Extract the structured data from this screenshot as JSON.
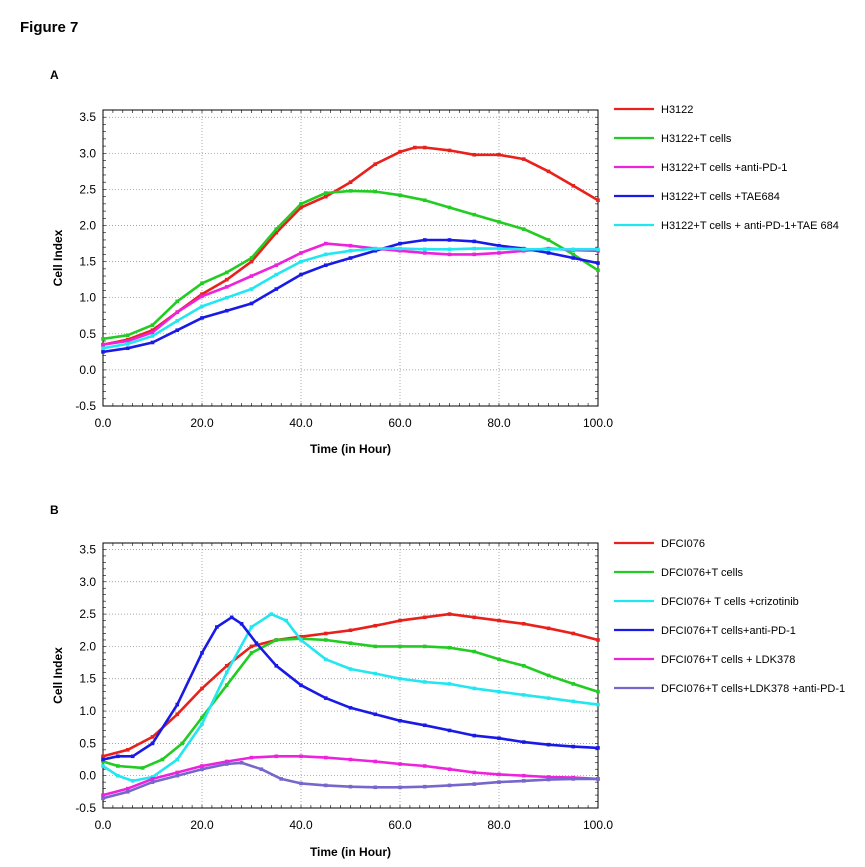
{
  "figure_title": "Figure 7",
  "panels": {
    "a_label": "A",
    "b_label": "B"
  },
  "chart_data": [
    {
      "type": "line",
      "panel": "A",
      "xlabel": "Time (in Hour)",
      "ylabel": "Cell Index",
      "xlim": [
        0,
        100
      ],
      "ylim": [
        -0.5,
        3.6
      ],
      "xticks": [
        0,
        20,
        40,
        60,
        80,
        100
      ],
      "xtick_labels": [
        "0.0",
        "20.0",
        "40.0",
        "60.0",
        "80.0",
        "100.0"
      ],
      "yticks": [
        -0.5,
        0,
        0.5,
        1,
        1.5,
        2,
        2.5,
        3,
        3.5
      ],
      "ytick_labels": [
        "-0.5",
        "0.0",
        "0.5",
        "1.0",
        "1.5",
        "2.0",
        "2.5",
        "3.0",
        "3.5"
      ],
      "grid": true,
      "legend_position": "right",
      "series": [
        {
          "name": "H3122",
          "color": "#e8211c",
          "x": [
            0,
            5,
            10,
            15,
            20,
            25,
            30,
            35,
            40,
            45,
            50,
            55,
            60,
            63,
            65,
            70,
            75,
            80,
            85,
            90,
            95,
            100
          ],
          "y": [
            0.35,
            0.42,
            0.55,
            0.8,
            1.05,
            1.25,
            1.5,
            1.9,
            2.25,
            2.4,
            2.6,
            2.85,
            3.02,
            3.08,
            3.08,
            3.04,
            2.98,
            2.98,
            2.92,
            2.75,
            2.55,
            2.35
          ]
        },
        {
          "name": "H3122+T cells",
          "color": "#22cc22",
          "x": [
            0,
            5,
            10,
            15,
            20,
            25,
            30,
            35,
            40,
            45,
            50,
            55,
            60,
            65,
            70,
            75,
            80,
            85,
            90,
            95,
            100
          ],
          "y": [
            0.43,
            0.48,
            0.62,
            0.95,
            1.2,
            1.35,
            1.55,
            1.95,
            2.3,
            2.45,
            2.48,
            2.47,
            2.42,
            2.35,
            2.25,
            2.15,
            2.05,
            1.95,
            1.8,
            1.6,
            1.38
          ]
        },
        {
          "name": "H3122+T cells +anti-PD-1",
          "color": "#ee22dd",
          "x": [
            0,
            5,
            10,
            15,
            20,
            25,
            30,
            35,
            40,
            45,
            50,
            55,
            60,
            65,
            70,
            75,
            80,
            85,
            90,
            95,
            100
          ],
          "y": [
            0.35,
            0.4,
            0.52,
            0.8,
            1.02,
            1.15,
            1.3,
            1.45,
            1.62,
            1.75,
            1.72,
            1.68,
            1.65,
            1.62,
            1.6,
            1.6,
            1.62,
            1.65,
            1.68,
            1.66,
            1.65
          ]
        },
        {
          "name": "H3122+T cells +TAE684",
          "color": "#1a1ae6",
          "x": [
            0,
            5,
            10,
            15,
            20,
            25,
            30,
            35,
            40,
            45,
            50,
            55,
            60,
            65,
            70,
            75,
            80,
            85,
            90,
            95,
            100
          ],
          "y": [
            0.25,
            0.3,
            0.38,
            0.55,
            0.72,
            0.82,
            0.92,
            1.12,
            1.32,
            1.45,
            1.55,
            1.65,
            1.75,
            1.8,
            1.8,
            1.78,
            1.72,
            1.68,
            1.62,
            1.55,
            1.48
          ]
        },
        {
          "name": "H3122+T cells + anti-PD-1+TAE 684",
          "color": "#22e6f0",
          "x": [
            0,
            5,
            10,
            15,
            20,
            25,
            30,
            35,
            40,
            45,
            50,
            55,
            60,
            65,
            70,
            75,
            80,
            85,
            90,
            95,
            100
          ],
          "y": [
            0.3,
            0.36,
            0.47,
            0.68,
            0.88,
            1.0,
            1.12,
            1.32,
            1.5,
            1.6,
            1.65,
            1.68,
            1.68,
            1.67,
            1.67,
            1.68,
            1.68,
            1.67,
            1.67,
            1.67,
            1.67
          ]
        }
      ]
    },
    {
      "type": "line",
      "panel": "B",
      "xlabel": "Time (in Hour)",
      "ylabel": "Cell Index",
      "xlim": [
        0,
        100
      ],
      "ylim": [
        -0.5,
        3.6
      ],
      "xticks": [
        0,
        20,
        40,
        60,
        80,
        100
      ],
      "xtick_labels": [
        "0.0",
        "20.0",
        "40.0",
        "60.0",
        "80.0",
        "100.0"
      ],
      "yticks": [
        -0.5,
        0,
        0.5,
        1,
        1.5,
        2,
        2.5,
        3,
        3.5
      ],
      "ytick_labels": [
        "-0.5",
        "0.0",
        "0.5",
        "1.0",
        "1.5",
        "2.0",
        "2.5",
        "3.0",
        "3.5"
      ],
      "grid": true,
      "legend_position": "right",
      "series": [
        {
          "name": "DFCI076",
          "color": "#e8211c",
          "x": [
            0,
            5,
            10,
            15,
            20,
            25,
            30,
            35,
            40,
            45,
            50,
            55,
            60,
            65,
            70,
            75,
            80,
            85,
            90,
            95,
            100
          ],
          "y": [
            0.3,
            0.4,
            0.6,
            0.95,
            1.35,
            1.7,
            2.0,
            2.1,
            2.15,
            2.2,
            2.25,
            2.32,
            2.4,
            2.45,
            2.5,
            2.45,
            2.4,
            2.35,
            2.28,
            2.2,
            2.1
          ]
        },
        {
          "name": "DFCI076+T cells",
          "color": "#22cc22",
          "x": [
            0,
            3,
            8,
            12,
            16,
            20,
            25,
            30,
            35,
            40,
            45,
            50,
            55,
            60,
            65,
            70,
            75,
            80,
            85,
            90,
            95,
            100
          ],
          "y": [
            0.22,
            0.15,
            0.12,
            0.25,
            0.5,
            0.9,
            1.4,
            1.9,
            2.1,
            2.12,
            2.1,
            2.05,
            2.0,
            2.0,
            2.0,
            1.98,
            1.92,
            1.8,
            1.7,
            1.55,
            1.42,
            1.3
          ]
        },
        {
          "name": "DFCI076+ T cells +crizotinib",
          "color": "#22e6f0",
          "x": [
            0,
            3,
            6,
            10,
            15,
            20,
            25,
            30,
            34,
            37,
            40,
            45,
            50,
            55,
            60,
            65,
            70,
            75,
            80,
            85,
            90,
            95,
            100
          ],
          "y": [
            0.15,
            0.0,
            -0.08,
            -0.02,
            0.25,
            0.8,
            1.6,
            2.3,
            2.5,
            2.4,
            2.1,
            1.8,
            1.65,
            1.58,
            1.5,
            1.45,
            1.42,
            1.35,
            1.3,
            1.25,
            1.2,
            1.15,
            1.1
          ]
        },
        {
          "name": "DFCI076+T cells+anti-PD-1",
          "color": "#1a1ae6",
          "x": [
            0,
            3,
            6,
            10,
            15,
            20,
            23,
            26,
            28,
            31,
            35,
            40,
            45,
            50,
            55,
            60,
            65,
            70,
            75,
            80,
            85,
            90,
            95,
            100
          ],
          "y": [
            0.25,
            0.3,
            0.3,
            0.5,
            1.1,
            1.9,
            2.3,
            2.45,
            2.35,
            2.05,
            1.7,
            1.4,
            1.2,
            1.05,
            0.95,
            0.85,
            0.78,
            0.7,
            0.62,
            0.58,
            0.52,
            0.48,
            0.45,
            0.43
          ]
        },
        {
          "name": "DFCI076+T cells + LDK378",
          "color": "#ee22dd",
          "x": [
            0,
            5,
            10,
            15,
            20,
            25,
            30,
            35,
            40,
            45,
            50,
            55,
            60,
            65,
            70,
            75,
            80,
            85,
            90,
            95,
            100
          ],
          "y": [
            -0.3,
            -0.2,
            -0.05,
            0.05,
            0.15,
            0.22,
            0.28,
            0.3,
            0.3,
            0.28,
            0.25,
            0.22,
            0.18,
            0.15,
            0.1,
            0.05,
            0.02,
            0.0,
            -0.02,
            -0.03,
            -0.05
          ]
        },
        {
          "name": "DFCI076+T cells+LDK378 +anti-PD-1",
          "color": "#7766cc",
          "x": [
            0,
            5,
            10,
            15,
            20,
            25,
            28,
            32,
            36,
            40,
            45,
            50,
            55,
            60,
            65,
            70,
            75,
            80,
            85,
            90,
            95,
            100
          ],
          "y": [
            -0.35,
            -0.25,
            -0.1,
            0.0,
            0.1,
            0.18,
            0.2,
            0.1,
            -0.05,
            -0.12,
            -0.15,
            -0.17,
            -0.18,
            -0.18,
            -0.17,
            -0.15,
            -0.13,
            -0.1,
            -0.08,
            -0.06,
            -0.05,
            -0.05
          ]
        }
      ]
    }
  ]
}
